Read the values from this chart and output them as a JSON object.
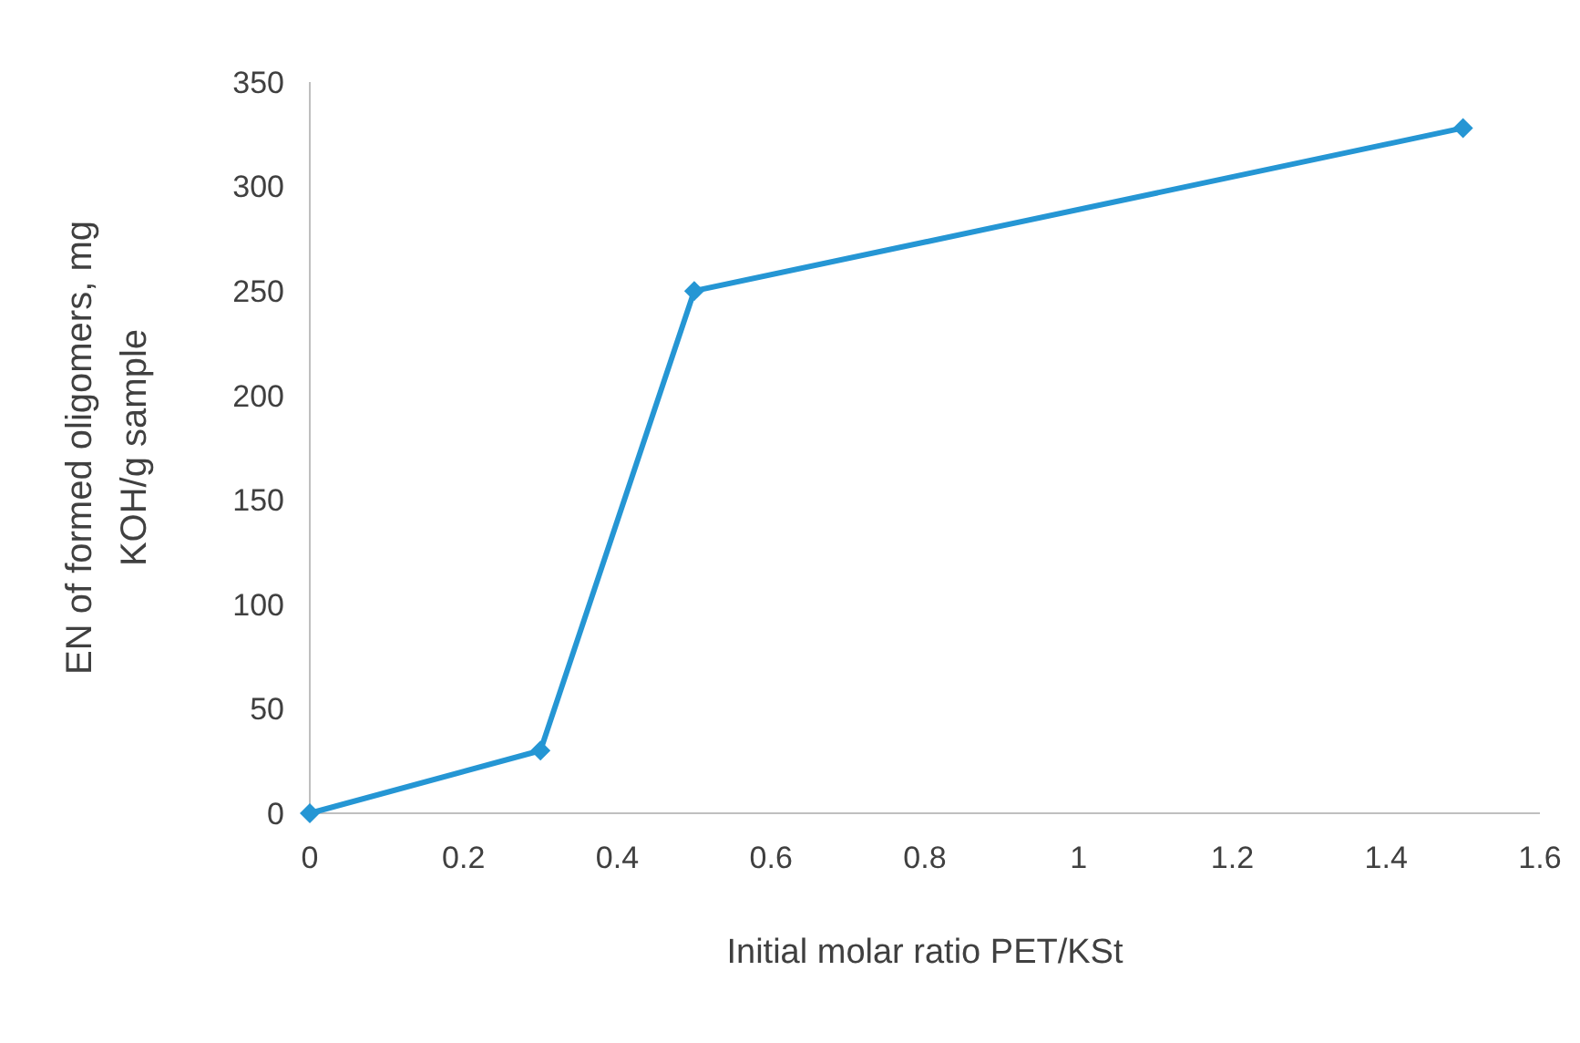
{
  "chart_data": {
    "type": "line",
    "xlabel": "Initial molar ratio PET/KSt",
    "ylabel": "EN of formed oligomers, mg KOH/g sample",
    "x": [
      0,
      0.3,
      0.5,
      1.5
    ],
    "series": [
      {
        "color": "#2596d4",
        "values": [
          0,
          30,
          250,
          328
        ]
      }
    ],
    "xlim": [
      0,
      1.6
    ],
    "xticks": [
      0,
      0.2,
      0.4,
      0.6,
      0.8,
      1,
      1.2,
      1.4,
      1.6
    ],
    "ylim": [
      0,
      350
    ],
    "yticks": [
      0,
      50,
      100,
      150,
      200,
      250,
      300,
      350
    ],
    "marker": "diamond",
    "line_style": "solid",
    "grid": false
  }
}
